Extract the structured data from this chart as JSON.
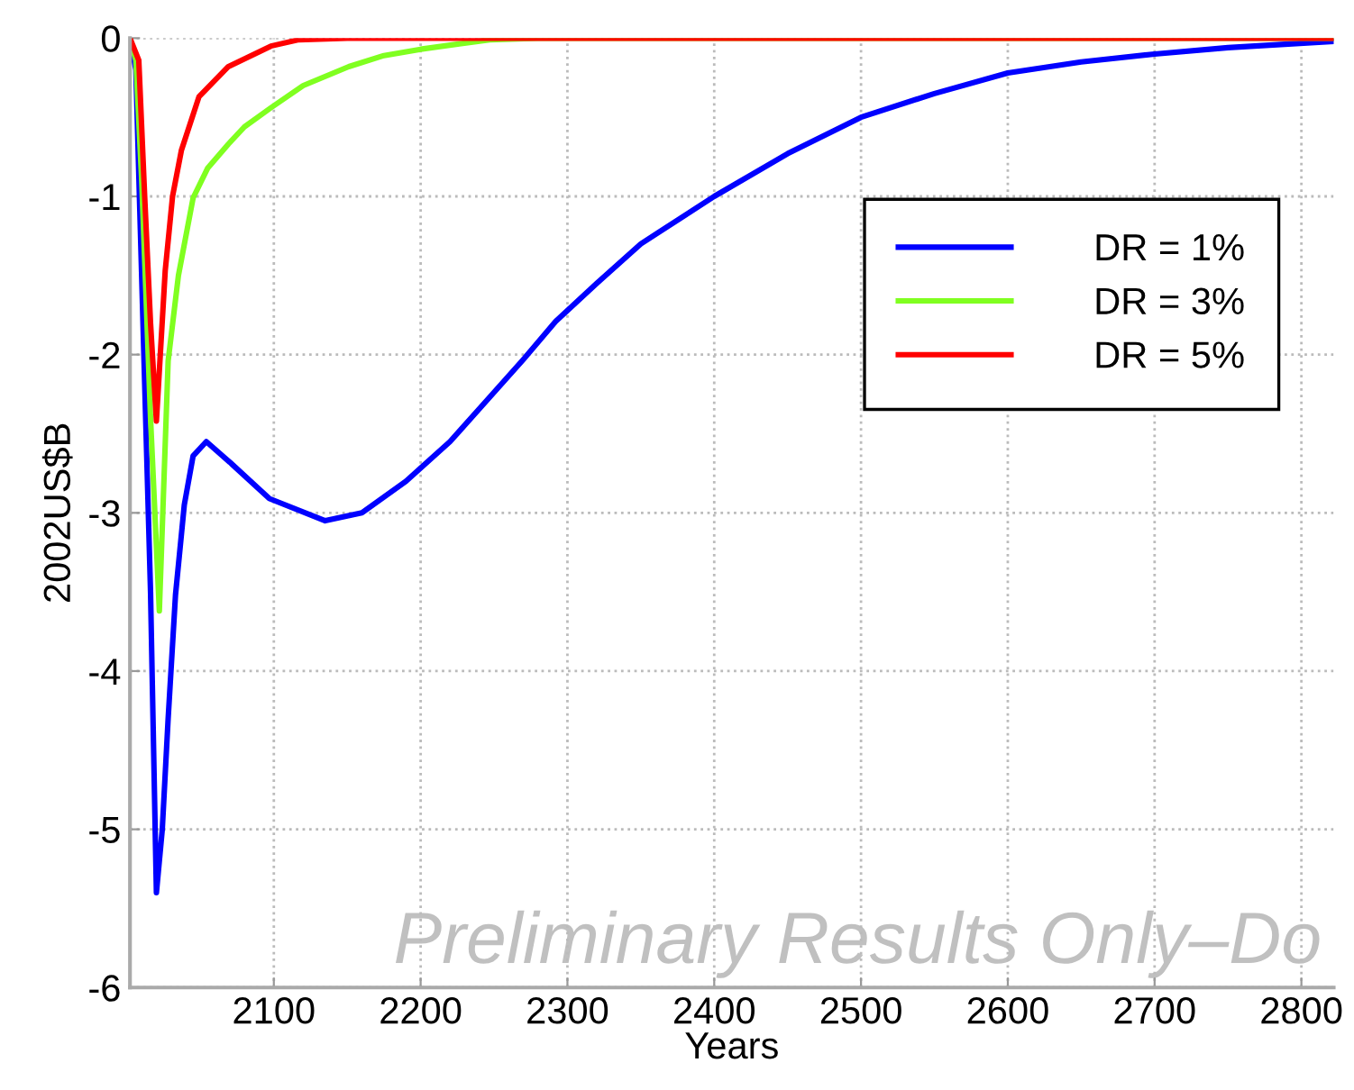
{
  "chart_data": {
    "type": "line",
    "xlabel": "Years",
    "ylabel": "2002US$B",
    "xlim": [
      2002,
      2822
    ],
    "ylim": [
      -6,
      0
    ],
    "xticks": [
      2100,
      2200,
      2300,
      2400,
      2500,
      2600,
      2700,
      2800
    ],
    "yticks": [
      -6,
      -5,
      -4,
      -3,
      -2,
      -1,
      0
    ],
    "grid": true,
    "legend": "top right",
    "line_style": "solid",
    "marker": "none",
    "annotations": [
      "Preliminary Results Only–Do"
    ],
    "series": [
      {
        "name": "DR = 1%",
        "color": "#0000ff",
        "x": [
          2002,
          2006,
          2016,
          2020,
          2024,
          2028,
          2033,
          2039,
          2045,
          2054,
          2070,
          2097,
          2135,
          2160,
          2190,
          2220,
          2247,
          2270,
          2292,
          2320,
          2350,
          2400,
          2450,
          2500,
          2550,
          2600,
          2650,
          2700,
          2750,
          2822
        ],
        "values": [
          0,
          -0.2,
          -3.5,
          -5.4,
          -5.0,
          -4.3,
          -3.52,
          -2.95,
          -2.64,
          -2.55,
          -2.68,
          -2.91,
          -3.05,
          -3.0,
          -2.8,
          -2.55,
          -2.27,
          -2.03,
          -1.79,
          -1.55,
          -1.3,
          -1.0,
          -0.73,
          -0.5,
          -0.35,
          -0.22,
          -0.15,
          -0.1,
          -0.06,
          -0.02
        ]
      },
      {
        "name": "DR = 3%",
        "color": "#80ff20",
        "x": [
          2002,
          2006,
          2010,
          2016,
          2022,
          2028,
          2035,
          2045,
          2055,
          2069,
          2080,
          2098,
          2120,
          2151,
          2175,
          2200,
          2247,
          2280,
          2822
        ],
        "values": [
          0,
          -0.14,
          -0.9,
          -2.4,
          -3.62,
          -2.04,
          -1.5,
          -1.01,
          -0.82,
          -0.67,
          -0.56,
          -0.44,
          -0.3,
          -0.18,
          -0.11,
          -0.07,
          -0.01,
          0,
          0
        ]
      },
      {
        "name": "DR = 5%",
        "color": "#ff0000",
        "x": [
          2002,
          2008,
          2012,
          2016,
          2020,
          2026,
          2031,
          2037,
          2049,
          2069,
          2098,
          2117,
          2150,
          2822
        ],
        "values": [
          0,
          -0.14,
          -1.0,
          -1.8,
          -2.42,
          -1.47,
          -1.0,
          -0.71,
          -0.37,
          -0.18,
          -0.05,
          -0.01,
          0,
          0
        ]
      }
    ]
  }
}
